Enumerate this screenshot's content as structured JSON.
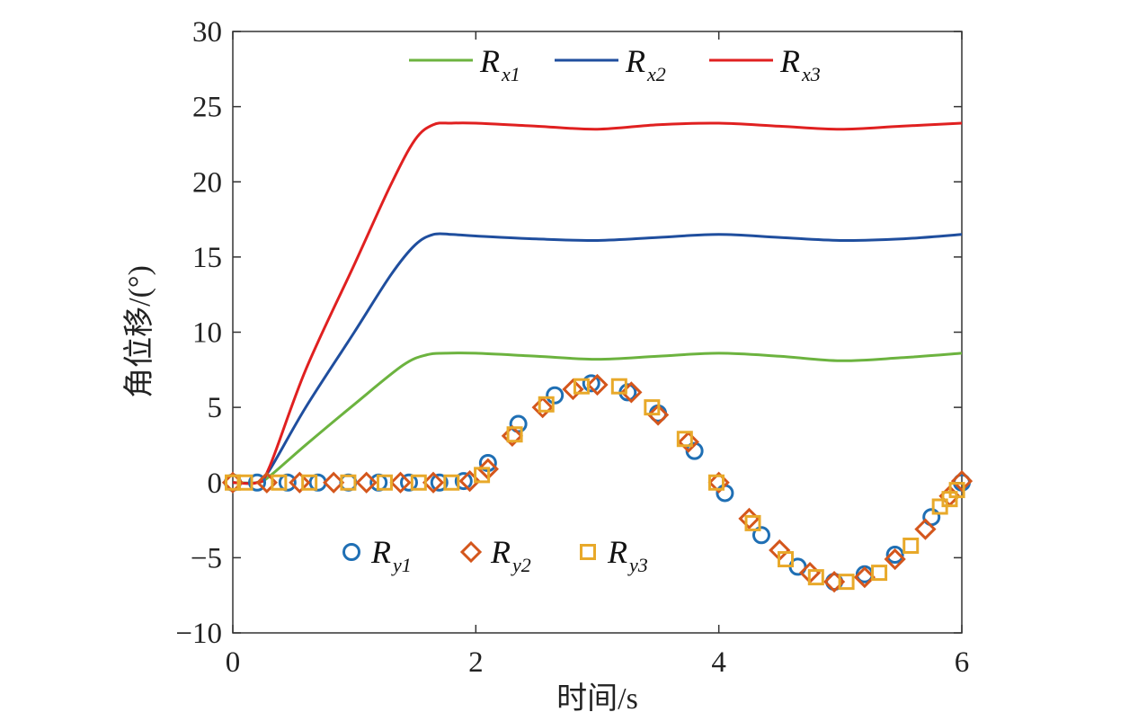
{
  "chart_data": {
    "type": "line",
    "title": "",
    "xlabel": "时间/s",
    "ylabel": "角位移/(°)",
    "xlim": [
      0,
      6
    ],
    "ylim": [
      -10,
      30
    ],
    "xticks": [
      0,
      2,
      4,
      6
    ],
    "yticks": [
      -10,
      -5,
      0,
      5,
      10,
      15,
      20,
      25,
      30
    ],
    "xtick_labels": [
      "0",
      "2",
      "4",
      "6"
    ],
    "ytick_labels": [
      "−10",
      "−5",
      "0",
      "5",
      "10",
      "15",
      "20",
      "25",
      "30"
    ],
    "grid": false,
    "legend_line_placement": "top-center",
    "legend_marker_placement": "lower-left",
    "series": [
      {
        "name": "Rx1",
        "label_main": "R",
        "label_sub": "x1",
        "style": "line",
        "color": "#6cb33f",
        "x": [
          0,
          0.2,
          0.3,
          0.6,
          1.0,
          1.4,
          1.6,
          1.75,
          2.0,
          2.5,
          3.0,
          3.5,
          4.0,
          4.5,
          5.0,
          5.5,
          6.0
        ],
        "y": [
          0,
          0,
          0.4,
          2.5,
          5.2,
          7.8,
          8.5,
          8.6,
          8.6,
          8.4,
          8.2,
          8.4,
          8.6,
          8.4,
          8.1,
          8.3,
          8.6
        ]
      },
      {
        "name": "Rx2",
        "label_main": "R",
        "label_sub": "x2",
        "style": "line",
        "color": "#1f4e9e",
        "x": [
          0,
          0.2,
          0.3,
          0.6,
          1.0,
          1.3,
          1.5,
          1.65,
          1.8,
          2.0,
          2.5,
          3.0,
          3.5,
          4.0,
          4.5,
          5.0,
          5.5,
          6.0
        ],
        "y": [
          0,
          0,
          0.8,
          5.0,
          10.0,
          13.8,
          15.8,
          16.5,
          16.5,
          16.4,
          16.2,
          16.1,
          16.3,
          16.5,
          16.3,
          16.1,
          16.2,
          16.5
        ],
        "label_x_note": ""
      },
      {
        "name": "Rx3",
        "label_main": "R",
        "label_sub": "x3",
        "style": "line",
        "color": "#e02020",
        "x": [
          0,
          0.2,
          0.3,
          0.6,
          1.0,
          1.3,
          1.5,
          1.65,
          1.8,
          2.0,
          2.5,
          3.0,
          3.5,
          4.0,
          4.5,
          5.0,
          5.5,
          6.0
        ],
        "y": [
          0,
          0,
          1.0,
          7.5,
          14.5,
          19.8,
          22.8,
          23.8,
          23.9,
          23.9,
          23.7,
          23.5,
          23.8,
          23.9,
          23.7,
          23.5,
          23.7,
          23.9
        ]
      },
      {
        "name": "Ry1",
        "label_main": "R",
        "label_sub": "y1",
        "style": "marker",
        "marker": "circle",
        "color": "#1f6fb4",
        "x": [
          0.0,
          0.2,
          0.45,
          0.7,
          0.95,
          1.2,
          1.45,
          1.7,
          1.9,
          2.1,
          2.35,
          2.65,
          2.95,
          3.25,
          3.5,
          3.8,
          4.05,
          4.35,
          4.65,
          4.95,
          5.2,
          5.45,
          5.75,
          6.0
        ],
        "y": [
          0,
          0,
          0,
          0,
          0,
          0,
          0,
          0,
          0.1,
          1.3,
          3.9,
          5.8,
          6.6,
          6.0,
          4.6,
          2.1,
          -0.7,
          -3.5,
          -5.6,
          -6.6,
          -6.1,
          -4.8,
          -2.3,
          0
        ]
      },
      {
        "name": "Ry2",
        "label_main": "R",
        "label_sub": "y2",
        "style": "marker",
        "marker": "diamond",
        "color": "#d4561c",
        "x": [
          0.0,
          0.28,
          0.55,
          0.83,
          1.1,
          1.38,
          1.65,
          1.95,
          2.1,
          2.3,
          2.55,
          2.8,
          3.0,
          3.28,
          3.5,
          3.75,
          4.0,
          4.25,
          4.5,
          4.75,
          4.95,
          5.2,
          5.45,
          5.7,
          5.9,
          6.0
        ],
        "y": [
          0,
          0,
          0,
          0,
          0,
          0,
          0,
          0.1,
          0.9,
          3.1,
          5.0,
          6.2,
          6.5,
          6.0,
          4.5,
          2.7,
          0,
          -2.4,
          -4.5,
          -6.0,
          -6.6,
          -6.3,
          -5.1,
          -3.1,
          -0.9,
          0.1
        ]
      },
      {
        "name": "Ry3",
        "label_main": "R",
        "label_sub": "y3",
        "style": "marker",
        "marker": "square",
        "color": "#e8a92a",
        "x": [
          0.0,
          0.1,
          0.38,
          0.63,
          0.95,
          1.25,
          1.53,
          1.8,
          2.05,
          2.32,
          2.58,
          2.87,
          3.18,
          3.45,
          3.72,
          3.98,
          4.28,
          4.55,
          4.8,
          5.05,
          5.32,
          5.58,
          5.82,
          5.9,
          5.96
        ],
        "y": [
          0,
          0,
          0,
          0,
          0,
          0,
          0,
          0,
          0.5,
          3.2,
          5.2,
          6.4,
          6.4,
          5.0,
          2.9,
          0,
          -2.7,
          -5.1,
          -6.3,
          -6.6,
          -6.0,
          -4.2,
          -1.6,
          -1.1,
          -0.5
        ]
      }
    ]
  }
}
